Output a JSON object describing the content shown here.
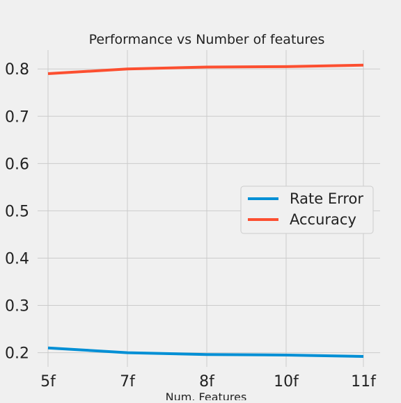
{
  "chart_data": {
    "type": "line",
    "title": "Performance vs Number of features",
    "xlabel": "Num. Features",
    "ylabel": "",
    "categories": [
      "5f",
      "7f",
      "8f",
      "10f",
      "11f"
    ],
    "ylim": [
      0.17,
      0.84
    ],
    "yticks": [
      0.2,
      0.3,
      0.4,
      0.5,
      0.6,
      0.7,
      0.8
    ],
    "yticklabels": [
      "0.2",
      "0.3",
      "0.4",
      "0.5",
      "0.6",
      "0.7",
      "0.8"
    ],
    "grid": true,
    "legend_position": "center-right",
    "series": [
      {
        "name": "Rate Error",
        "color": "#008fd5",
        "values": [
          0.21,
          0.2,
          0.196,
          0.195,
          0.192
        ]
      },
      {
        "name": "Accuracy",
        "color": "#fc4f30",
        "values": [
          0.79,
          0.8,
          0.804,
          0.805,
          0.808
        ]
      }
    ]
  }
}
